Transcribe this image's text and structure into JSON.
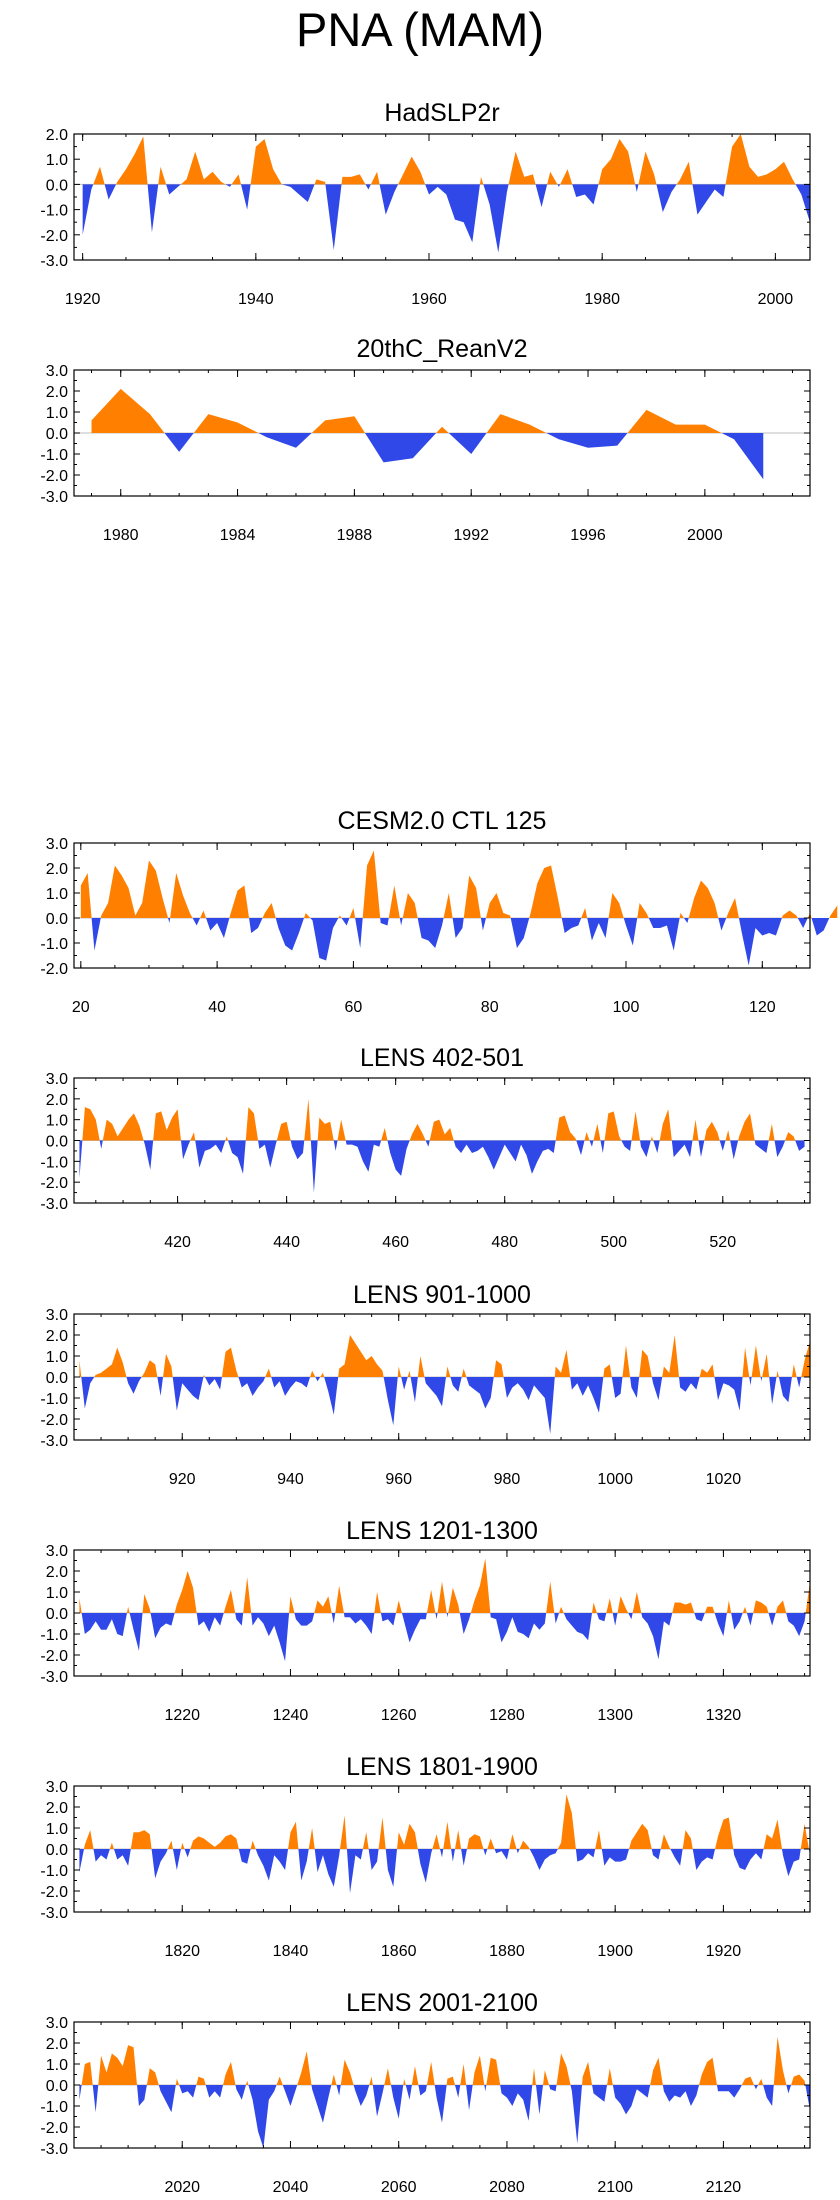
{
  "figure_title": "PNA (MAM)",
  "colors": {
    "positive": "#ff8000",
    "negative": "#3048e8",
    "axis": "#000000",
    "zero_line": "#bfbfbf"
  },
  "chart_data": [
    {
      "type": "area",
      "title": "HadSLP2r",
      "ylim": [
        -3.0,
        2.0
      ],
      "yticks": [
        "2.0",
        "1.0",
        "0.0",
        "-1.0",
        "-2.0",
        "-3.0"
      ],
      "xlim": [
        1919,
        2004
      ],
      "xticks": [
        1920,
        1940,
        1960,
        1980,
        2000
      ],
      "x_start": 1920,
      "values": [
        -2.0,
        -0.2,
        0.7,
        -0.6,
        0.1,
        0.6,
        1.2,
        1.9,
        -1.9,
        0.7,
        -0.4,
        -0.1,
        0.2,
        1.3,
        0.2,
        0.5,
        0.1,
        -0.1,
        0.4,
        -1.0,
        1.5,
        1.8,
        0.6,
        0.0,
        -0.1,
        -0.4,
        -0.7,
        0.2,
        0.1,
        -2.6,
        0.3,
        0.3,
        0.4,
        -0.2,
        0.5,
        -1.2,
        -0.3,
        0.4,
        1.1,
        0.5,
        -0.4,
        -0.1,
        -0.4,
        -1.4,
        -1.5,
        -2.3,
        0.3,
        -0.8,
        -2.7,
        -0.3,
        1.3,
        0.3,
        0.4,
        -0.9,
        0.5,
        -0.1,
        0.6,
        -0.5,
        -0.4,
        -0.8,
        0.6,
        1.0,
        1.8,
        1.3,
        -0.3,
        1.3,
        0.4,
        -1.1,
        -0.3,
        0.2,
        0.9,
        -1.2,
        -0.7,
        -0.2,
        -0.5,
        1.5,
        2.0,
        0.7,
        0.3,
        0.4,
        0.6,
        0.9,
        0.2,
        -0.4,
        -1.5
      ]
    },
    {
      "type": "area",
      "title": "20thC_ReanV2",
      "ylim": [
        -3.0,
        3.0
      ],
      "yticks": [
        "3.0",
        "2.0",
        "1.0",
        "0.0",
        "-1.0",
        "-2.0",
        "-3.0"
      ],
      "xlim": [
        1978.4,
        2003.6
      ],
      "xticks": [
        1980,
        1984,
        1988,
        1992,
        1996,
        2000
      ],
      "x_start": 1979,
      "values": [
        0.6,
        2.1,
        0.9,
        -0.9,
        0.9,
        0.5,
        -0.2,
        -0.7,
        0.6,
        0.8,
        -1.4,
        -1.2,
        0.3,
        -1.0,
        0.9,
        0.4,
        -0.3,
        -0.7,
        -0.6,
        1.1,
        0.4,
        0.4,
        -0.3,
        -2.2
      ]
    },
    {
      "type": "area",
      "title": "CESM2.0 CTL 125",
      "ylim": [
        -2.0,
        3.0
      ],
      "yticks": [
        "3.0",
        "2.0",
        "1.0",
        "0.0",
        "-1.0",
        "-2.0"
      ],
      "xlim": [
        19,
        127
      ],
      "xticks": [
        20,
        40,
        60,
        80,
        100,
        120
      ],
      "x_start": 20,
      "values": [
        1.3,
        1.8,
        -1.3,
        0.1,
        0.6,
        2.1,
        1.7,
        1.2,
        0.1,
        0.6,
        2.3,
        1.9,
        0.8,
        -0.2,
        1.8,
        0.9,
        0.2,
        -0.3,
        0.3,
        -0.5,
        -0.2,
        -0.8,
        0.2,
        1.1,
        1.3,
        -0.6,
        -0.4,
        0.2,
        0.6,
        -0.4,
        -1.1,
        -1.3,
        -0.6,
        0.2,
        -0.1,
        -1.6,
        -1.7,
        -0.4,
        0.1,
        -0.3,
        0.4,
        -1.2,
        2.1,
        2.7,
        -0.2,
        -0.3,
        1.3,
        -0.3,
        1.0,
        0.6,
        -0.8,
        -0.9,
        -1.2,
        -0.3,
        1.0,
        -0.8,
        -0.4,
        1.7,
        1.2,
        -0.5,
        0.6,
        1.0,
        0.2,
        0.1,
        -1.2,
        -0.8,
        0.2,
        1.4,
        2.0,
        2.1,
        0.8,
        -0.6,
        -0.4,
        -0.3,
        0.4,
        -0.9,
        -0.2,
        -0.8,
        1.0,
        0.6,
        -0.3,
        -1.1,
        0.6,
        0.2,
        -0.4,
        -0.4,
        -0.3,
        -1.3,
        0.2,
        -0.2,
        0.8,
        1.5,
        1.2,
        0.6,
        -0.5,
        0.2,
        0.8,
        -0.6,
        -1.9,
        -0.4,
        -0.7,
        -0.6,
        -0.7,
        0.1,
        0.3,
        0.1,
        -0.4,
        0.2,
        -0.7,
        -0.5,
        0.1,
        0.5
      ]
    },
    {
      "type": "area",
      "title": "LENS 402-501",
      "ylim": [
        -3.0,
        3.0
      ],
      "yticks": [
        "3.0",
        "2.0",
        "1.0",
        "0.0",
        "-1.0",
        "-2.0",
        "-3.0"
      ],
      "xlim": [
        401,
        536
      ],
      "xticks": [
        420,
        440,
        460,
        480,
        500,
        520
      ],
      "x_start": 402,
      "values": [
        -1.8,
        1.6,
        1.5,
        1.0,
        -0.4,
        1.0,
        0.8,
        0.2,
        0.6,
        1.0,
        1.3,
        0.7,
        -0.2,
        -1.4,
        1.3,
        1.4,
        0.5,
        1.1,
        1.5,
        -0.9,
        -0.2,
        0.4,
        -1.3,
        -0.5,
        -0.4,
        -0.2,
        -0.6,
        0.2,
        -0.6,
        -0.8,
        -1.6,
        1.6,
        1.3,
        -0.4,
        -0.2,
        -1.3,
        -0.2,
        0.8,
        0.9,
        -0.3,
        -0.9,
        -0.6,
        2.0,
        -2.5,
        1.1,
        0.8,
        0.9,
        -0.5,
        1.0,
        -0.2,
        -0.2,
        -0.3,
        -1.0,
        -1.5,
        -0.2,
        -0.3,
        0.6,
        -0.6,
        -1.4,
        -1.7,
        -0.4,
        0.3,
        0.8,
        0.3,
        -0.3,
        0.9,
        1.0,
        0.3,
        0.6,
        -0.3,
        -0.6,
        -0.2,
        -0.6,
        -0.5,
        -0.3,
        -0.8,
        -1.4,
        -0.8,
        -0.2,
        -0.6,
        -1.0,
        -0.2,
        -0.7,
        -1.6,
        -1.0,
        -0.5,
        -0.4,
        -0.6,
        1.1,
        1.2,
        0.4,
        0.1,
        -0.7,
        0.4,
        -0.3,
        0.8,
        -0.6,
        1.3,
        1.4,
        0.2,
        -0.3,
        -0.5,
        1.4,
        -0.3,
        -0.8,
        0.2,
        -0.6,
        0.8,
        1.5,
        -0.8,
        -0.5,
        -0.2,
        -0.8,
        1.0,
        -0.8,
        0.5,
        0.9,
        0.4,
        -0.5,
        0.5,
        -0.9,
        0.2,
        0.9,
        1.3,
        -0.2,
        -0.4,
        -0.6,
        0.8,
        -0.8,
        -0.3,
        0.4,
        0.2,
        -0.5,
        -0.3
      ]
    },
    {
      "type": "area",
      "title": "LENS 901-1000",
      "ylim": [
        -3.0,
        3.0
      ],
      "yticks": [
        "3.0",
        "2.0",
        "1.0",
        "0.0",
        "-1.0",
        "-2.0",
        "-3.0"
      ],
      "xlim": [
        900,
        1036
      ],
      "xticks": [
        920,
        940,
        960,
        980,
        1000,
        1020
      ],
      "x_start": 901,
      "values": [
        0.8,
        -1.5,
        -0.3,
        0.1,
        0.2,
        0.4,
        0.6,
        1.4,
        0.7,
        -0.3,
        -0.8,
        -0.2,
        0.2,
        0.8,
        0.6,
        -0.9,
        1.1,
        0.5,
        -1.6,
        -0.3,
        -0.6,
        -0.9,
        -1.1,
        0.1,
        -0.4,
        -0.1,
        -0.6,
        1.2,
        1.4,
        0.3,
        -0.5,
        -0.3,
        -0.9,
        -0.5,
        -0.2,
        0.4,
        -0.5,
        -0.2,
        -0.9,
        -0.5,
        -0.2,
        -0.3,
        -0.5,
        0.3,
        -0.2,
        0.2,
        -0.7,
        -1.8,
        0.4,
        0.6,
        2.0,
        1.6,
        1.2,
        0.8,
        1.0,
        0.6,
        0.3,
        -1.1,
        -2.3,
        0.5,
        -0.6,
        0.3,
        -1.2,
        1.0,
        -0.3,
        -0.6,
        -0.9,
        -1.4,
        0.5,
        -0.4,
        -0.7,
        0.4,
        -0.4,
        -0.6,
        -0.8,
        -1.5,
        -1.0,
        0.8,
        0.6,
        -1.0,
        -0.5,
        -0.3,
        -0.6,
        -1.1,
        -0.4,
        -0.7,
        -1.0,
        -2.7,
        0.5,
        0.2,
        1.3,
        -0.6,
        -0.3,
        -0.9,
        -0.4,
        -1.0,
        -1.7,
        0.4,
        0.6,
        -1.0,
        -0.8,
        1.5,
        -0.5,
        -1.0,
        1.3,
        1.0,
        -0.3,
        -1.1,
        0.5,
        0.2,
        2.0,
        -0.5,
        -0.7,
        -0.3,
        -0.6,
        0.4,
        0.2,
        0.6,
        -1.1,
        -0.3,
        -0.4,
        -0.6,
        -1.6,
        1.4,
        -0.4,
        1.5,
        -0.2,
        1.1,
        -1.3,
        0.3,
        -0.9,
        -1.2,
        0.6,
        -0.5,
        0.8,
        1.7
      ]
    },
    {
      "type": "area",
      "title": "LENS 1201-1300",
      "ylim": [
        -3.0,
        3.0
      ],
      "yticks": [
        "3.0",
        "2.0",
        "1.0",
        "0.0",
        "-1.0",
        "-2.0",
        "-3.0"
      ],
      "xlim": [
        1200,
        1336
      ],
      "xticks": [
        1220,
        1240,
        1260,
        1280,
        1300,
        1320
      ],
      "x_start": 1201,
      "values": [
        0.7,
        -1.0,
        -0.8,
        -0.4,
        -0.8,
        -0.8,
        -0.3,
        -1.0,
        -1.1,
        0.3,
        -0.8,
        -1.8,
        0.9,
        0.2,
        -1.2,
        -0.7,
        -0.5,
        -0.6,
        0.4,
        1.1,
        2.0,
        1.2,
        -0.6,
        -0.4,
        -0.9,
        -0.2,
        -0.6,
        0.3,
        1.1,
        -0.3,
        -0.6,
        1.7,
        -0.6,
        -0.2,
        -0.5,
        -1.1,
        -0.6,
        -1.4,
        -2.3,
        0.8,
        -0.3,
        -0.6,
        -0.6,
        -0.4,
        0.6,
        0.3,
        0.8,
        -0.5,
        1.3,
        -0.2,
        -0.2,
        -0.5,
        -0.3,
        -0.6,
        -1.0,
        1.0,
        -0.4,
        -0.3,
        -0.6,
        0.6,
        -0.4,
        -1.4,
        -0.8,
        -0.3,
        -0.3,
        1.1,
        -0.3,
        1.5,
        -0.2,
        1.2,
        0.4,
        -1.0,
        -0.3,
        0.6,
        1.3,
        2.6,
        -0.2,
        -0.3,
        -1.4,
        -0.9,
        -0.2,
        -0.9,
        -1.0,
        -1.2,
        -0.5,
        -0.8,
        -0.5,
        1.5,
        -0.5,
        0.3,
        -0.3,
        -0.6,
        -0.9,
        -1.0,
        -1.3,
        0.5,
        -0.3,
        -0.4,
        0.7,
        -0.6,
        0.8,
        0.2,
        -0.3,
        1.0,
        -0.2,
        -0.5,
        -1.1,
        -2.2,
        -0.4,
        -0.6,
        0.5,
        0.5,
        0.4,
        0.5,
        -0.3,
        -0.4,
        0.3,
        0.3,
        -0.5,
        -1.1,
        0.6,
        -0.8,
        -0.4,
        0.3,
        -0.6,
        0.6,
        0.5,
        0.3,
        -0.6,
        0.3,
        0.6,
        -0.4,
        -0.6,
        -1.1,
        -0.4,
        1.5
      ]
    },
    {
      "type": "area",
      "title": "LENS 1801-1900",
      "ylim": [
        -3.0,
        3.0
      ],
      "yticks": [
        "3.0",
        "2.0",
        "1.0",
        "0.0",
        "-1.0",
        "-2.0",
        "-3.0"
      ],
      "xlim": [
        1800,
        1936
      ],
      "xticks": [
        1820,
        1840,
        1860,
        1880,
        1900,
        1920
      ],
      "x_start": 1801,
      "values": [
        -1.1,
        0.2,
        0.9,
        -0.6,
        -0.3,
        -0.5,
        0.3,
        -0.5,
        -0.3,
        -0.8,
        0.8,
        0.8,
        0.9,
        0.7,
        -1.4,
        -0.6,
        -0.2,
        0.4,
        -1.0,
        0.3,
        -0.4,
        0.4,
        0.6,
        0.5,
        0.3,
        0.1,
        0.3,
        0.6,
        0.7,
        0.5,
        -0.6,
        -0.7,
        0.4,
        -0.3,
        -0.8,
        -1.5,
        -0.3,
        -0.6,
        -1.0,
        0.8,
        1.3,
        -1.5,
        -0.6,
        1.0,
        -1.1,
        -0.3,
        -1.2,
        -1.8,
        -0.3,
        1.6,
        -2.1,
        -0.3,
        -0.5,
        0.8,
        -1.0,
        -0.6,
        1.5,
        -1.0,
        -1.8,
        0.8,
        0.2,
        1.2,
        0.8,
        -0.7,
        -1.6,
        -0.2,
        0.7,
        -0.4,
        1.3,
        -0.6,
        0.9,
        -0.8,
        0.5,
        0.7,
        0.6,
        -0.3,
        0.5,
        -0.2,
        -0.1,
        -0.5,
        0.7,
        -0.2,
        0.4,
        0.1,
        -0.4,
        -1.0,
        -0.5,
        -0.3,
        -0.2,
        0.3,
        2.6,
        1.7,
        -0.6,
        -0.5,
        -0.2,
        -0.4,
        0.9,
        -0.8,
        -0.4,
        -0.6,
        -0.6,
        -0.5,
        0.4,
        0.8,
        1.2,
        0.9,
        -0.3,
        -0.5,
        0.7,
        0.1,
        -0.4,
        -0.8,
        0.9,
        0.5,
        -1.0,
        -0.6,
        -0.4,
        -0.5,
        0.6,
        1.4,
        1.5,
        -0.3,
        -0.9,
        -1.0,
        -0.5,
        -0.2,
        -0.5,
        0.7,
        0.5,
        1.4,
        -0.3,
        -1.3,
        -0.6,
        -0.5,
        1.2,
        -0.3
      ]
    },
    {
      "type": "area",
      "title": "LENS 2001-2100",
      "ylim": [
        -3.0,
        3.0
      ],
      "yticks": [
        "3.0",
        "2.0",
        "1.0",
        "0.0",
        "-1.0",
        "-2.0",
        "-3.0"
      ],
      "xlim": [
        2000,
        2136
      ],
      "xticks": [
        2020,
        2040,
        2060,
        2080,
        2100,
        2120
      ],
      "x_start": 2001,
      "values": [
        -0.7,
        1.0,
        1.1,
        -1.3,
        1.4,
        0.6,
        1.5,
        1.3,
        0.9,
        1.9,
        1.8,
        -1.0,
        -0.7,
        0.8,
        0.6,
        -0.3,
        -0.8,
        -1.3,
        0.3,
        -0.4,
        -0.3,
        -0.6,
        0.4,
        0.3,
        -0.6,
        -0.3,
        -0.6,
        0.5,
        1.1,
        -0.2,
        -0.7,
        0.2,
        -0.7,
        -2.2,
        -3.0,
        -0.7,
        -0.3,
        0.4,
        -0.3,
        -1.0,
        -0.2,
        0.6,
        1.6,
        -0.2,
        -1.0,
        -1.8,
        -0.6,
        0.5,
        -0.5,
        1.2,
        0.6,
        -0.3,
        -1.0,
        -0.5,
        0.4,
        -1.5,
        -0.4,
        0.8,
        -0.6,
        -1.6,
        0.3,
        -0.7,
        0.9,
        -0.5,
        -0.3,
        1.1,
        -0.6,
        -1.8,
        0.3,
        0.4,
        -0.6,
        1.0,
        -1.2,
        0.6,
        1.4,
        -0.3,
        1.3,
        1.2,
        -0.4,
        -0.6,
        -1.0,
        -0.4,
        -0.7,
        -1.7,
        0.8,
        -1.4,
        0.7,
        -0.2,
        -0.3,
        1.5,
        0.9,
        -0.3,
        -2.8,
        0.4,
        1.1,
        -0.4,
        -0.6,
        -0.8,
        0.8,
        -0.6,
        -0.9,
        -1.4,
        -1.0,
        -0.2,
        -0.4,
        -0.6,
        0.7,
        1.3,
        -0.3,
        -0.8,
        -0.5,
        -0.6,
        -0.3,
        -1.0,
        -0.5,
        0.5,
        1.1,
        1.3,
        -0.3,
        -0.3,
        -0.3,
        -0.6,
        -0.2,
        0.3,
        0.4,
        -0.2,
        0.3,
        -0.6,
        -1.0,
        2.3,
        0.7,
        -0.4,
        0.4,
        0.5,
        0.2,
        -1.2
      ]
    }
  ]
}
